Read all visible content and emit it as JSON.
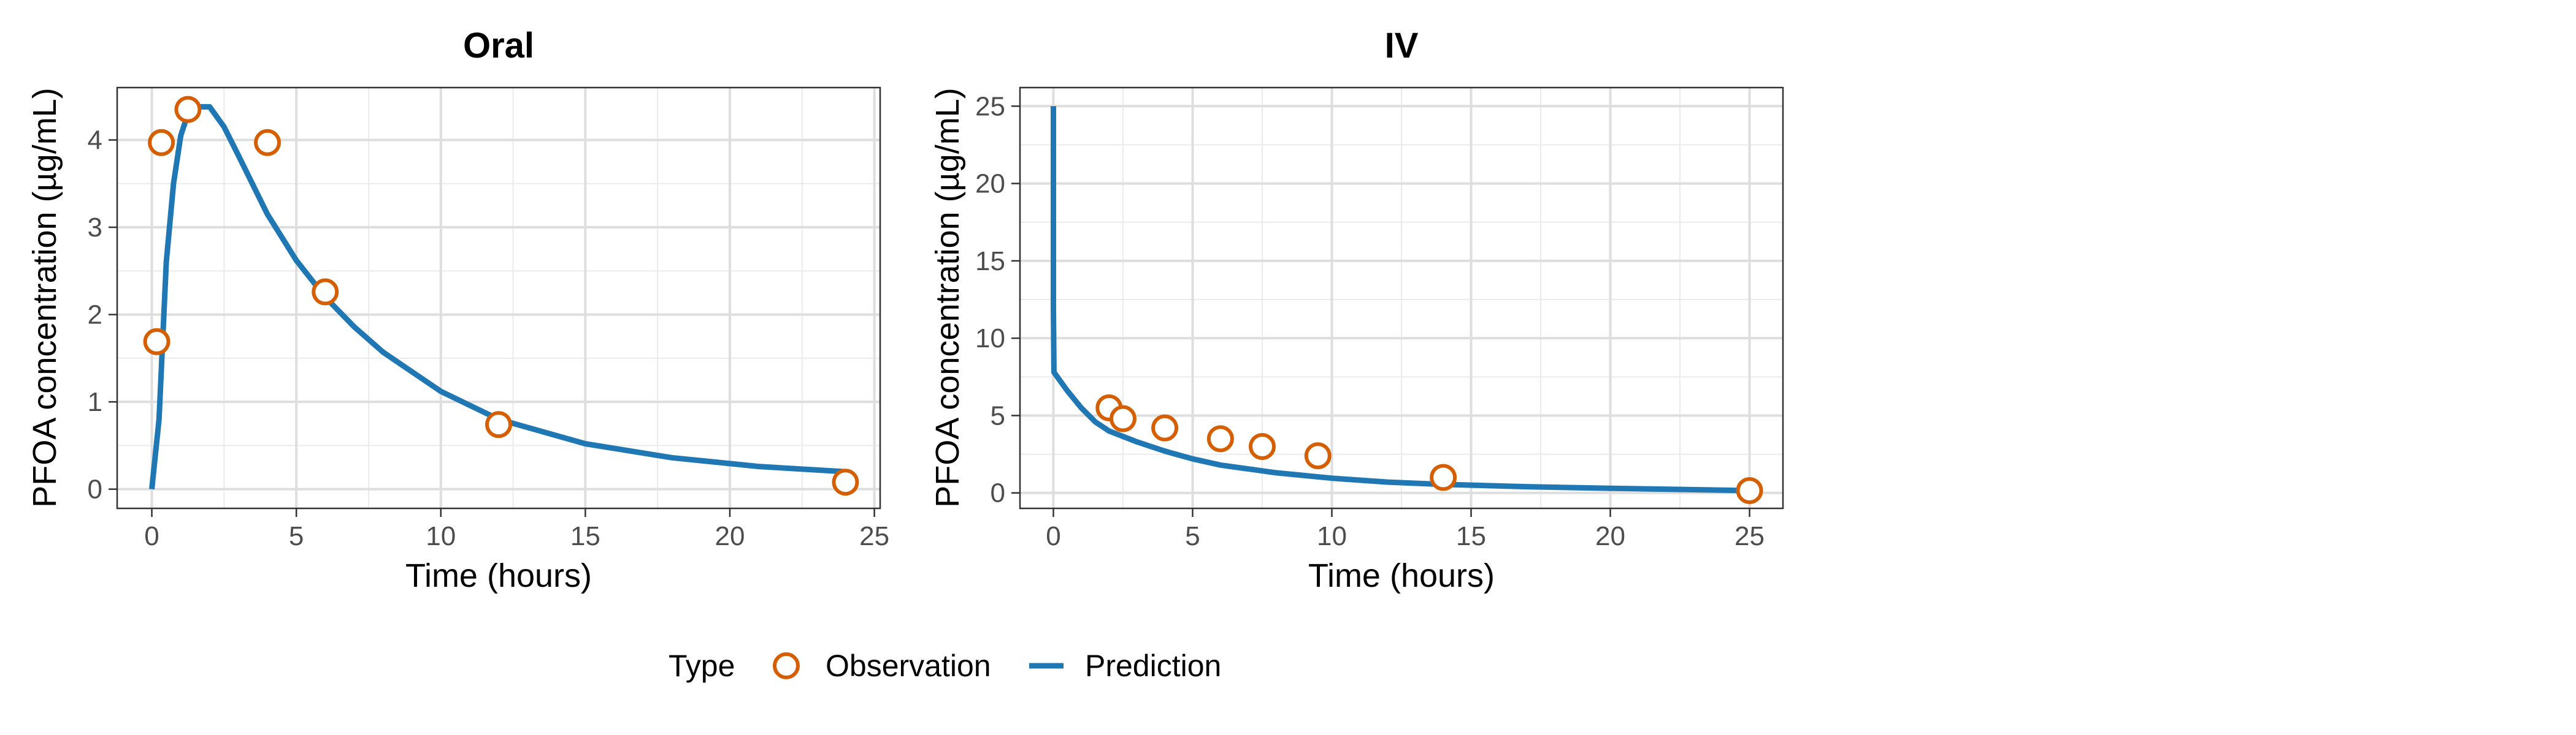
{
  "legend": {
    "title": "Type",
    "items": [
      {
        "label": "Observation",
        "kind": "point",
        "color": "#D55E00"
      },
      {
        "label": "Prediction",
        "kind": "line",
        "color": "#1F77B4"
      }
    ]
  },
  "chart_data": [
    {
      "type": "scatter",
      "title": "Oral",
      "xlabel": "Time (hours)",
      "ylabel": "PFOA concentration (µg/mL)",
      "xlim": [
        -1.2,
        25.2
      ],
      "ylim": [
        -0.22,
        4.6
      ],
      "xticks": [
        0,
        5,
        10,
        15,
        20,
        25
      ],
      "yticks": [
        0,
        1,
        2,
        3,
        4
      ],
      "grid": true,
      "series": [
        {
          "name": "Observation",
          "type": "scatter",
          "color": "#D55E00",
          "x": [
            0.17,
            0.33,
            1.25,
            4,
            6,
            12,
            24
          ],
          "y": [
            1.69,
            3.97,
            4.35,
            3.97,
            2.26,
            0.74,
            0.08
          ]
        },
        {
          "name": "Prediction",
          "type": "line",
          "color": "#1F77B4",
          "x": [
            0,
            0.25,
            0.5,
            0.75,
            1.0,
            1.25,
            1.5,
            2.0,
            2.5,
            3.0,
            4.0,
            5.0,
            6.0,
            7.0,
            8.0,
            10.0,
            12.0,
            15.0,
            18.0,
            21.0,
            24.0
          ],
          "y": [
            0,
            0.8,
            2.6,
            3.5,
            4.05,
            4.3,
            4.38,
            4.38,
            4.15,
            3.82,
            3.15,
            2.62,
            2.2,
            1.86,
            1.57,
            1.12,
            0.8,
            0.52,
            0.36,
            0.26,
            0.2
          ]
        }
      ]
    },
    {
      "type": "scatter",
      "title": "IV",
      "xlabel": "Time (hours)",
      "ylabel": "PFOA concentration (µg/mL)",
      "xlim": [
        -1.2,
        26.2
      ],
      "ylim": [
        -1.0,
        26.2
      ],
      "xticks": [
        0,
        5,
        10,
        15,
        20,
        25
      ],
      "yticks": [
        0,
        5,
        10,
        15,
        20,
        25
      ],
      "grid": true,
      "series": [
        {
          "name": "Observation",
          "type": "scatter",
          "color": "#D55E00",
          "x": [
            2,
            2.5,
            4,
            6,
            7.5,
            9.5,
            14,
            25
          ],
          "y": [
            5.5,
            4.8,
            4.2,
            3.5,
            3.0,
            2.4,
            1.0,
            0.15
          ]
        },
        {
          "name": "Prediction",
          "type": "line",
          "color": "#1F77B4",
          "x": [
            0,
            0,
            0.02,
            0.5,
            1,
            1.5,
            2,
            3,
            4,
            5,
            6,
            8,
            10,
            12,
            14,
            17,
            20,
            25
          ],
          "y": [
            25,
            12,
            7.8,
            6.6,
            5.5,
            4.6,
            4.0,
            3.3,
            2.7,
            2.2,
            1.8,
            1.3,
            0.95,
            0.7,
            0.55,
            0.4,
            0.3,
            0.15
          ]
        }
      ]
    }
  ]
}
